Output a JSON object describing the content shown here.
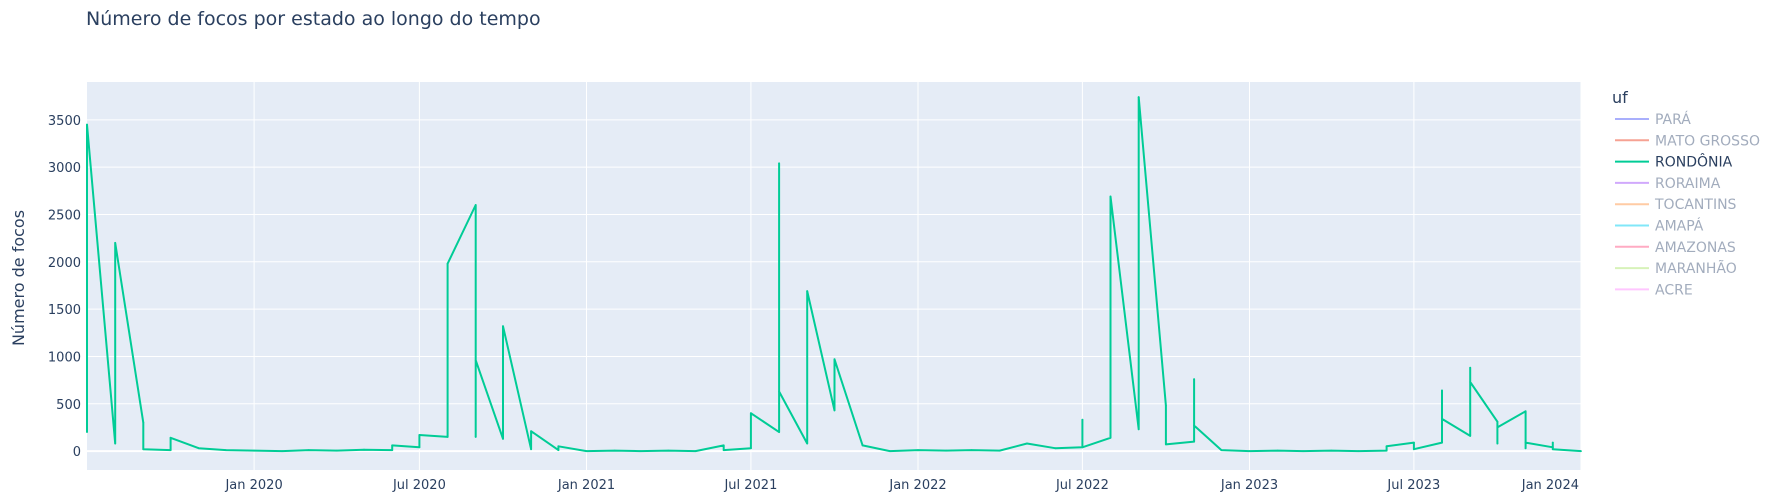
{
  "chart_data": {
    "type": "line",
    "title": "Número de focos por estado ao longo do tempo",
    "xlabel": "",
    "ylabel": "Número de focos",
    "xlim": [
      "2019-07-01",
      "2024-01-01"
    ],
    "ylim": [
      -200,
      3900
    ],
    "x_ticks": [
      {
        "date": "2020-01-01",
        "label": "Jan 2020"
      },
      {
        "date": "2020-07-01",
        "label": "Jul 2020"
      },
      {
        "date": "2021-01-01",
        "label": "Jan 2021"
      },
      {
        "date": "2021-07-01",
        "label": "Jul 2021"
      },
      {
        "date": "2022-01-01",
        "label": "Jan 2022"
      },
      {
        "date": "2022-07-01",
        "label": "Jul 2022"
      },
      {
        "date": "2023-01-01",
        "label": "Jan 2023"
      },
      {
        "date": "2023-07-01",
        "label": "Jul 2023"
      },
      {
        "date": "2024-01-01",
        "label": "Jan 2024"
      }
    ],
    "y_ticks": [
      0,
      500,
      1000,
      1500,
      2000,
      2500,
      3000,
      3500
    ],
    "grid": true,
    "background": "#e5ecf6",
    "legend": {
      "title": "uf",
      "placement": "right",
      "entries": [
        {
          "name": "PARÁ",
          "color": "#636efa",
          "visible": false
        },
        {
          "name": "MATO GROSSO",
          "color": "#ef553b",
          "visible": false
        },
        {
          "name": "RONDÔNIA",
          "color": "#00cc96",
          "visible": true
        },
        {
          "name": "RORAIMA",
          "color": "#ab63fa",
          "visible": false
        },
        {
          "name": "TOCANTINS",
          "color": "#ffa15a",
          "visible": false
        },
        {
          "name": "AMAPÁ",
          "color": "#19d3f3",
          "visible": false
        },
        {
          "name": "AMAZONAS",
          "color": "#ff6692",
          "visible": false
        },
        {
          "name": "MARANHÃO",
          "color": "#b6e880",
          "visible": false
        },
        {
          "name": "ACRE",
          "color": "#ff97ff",
          "visible": false
        }
      ]
    },
    "series": [
      {
        "name": "RONDÔNIA",
        "color": "#00cc96",
        "points": [
          [
            "2019-07-01",
            200
          ],
          [
            "2019-07-01",
            3450
          ],
          [
            "2019-08-01",
            80
          ],
          [
            "2019-08-01",
            2200
          ],
          [
            "2019-09-01",
            300
          ],
          [
            "2019-09-01",
            20
          ],
          [
            "2019-10-01",
            10
          ],
          [
            "2019-10-01",
            140
          ],
          [
            "2019-11-01",
            30
          ],
          [
            "2019-12-01",
            10
          ],
          [
            "2020-01-01",
            5
          ],
          [
            "2020-02-01",
            0
          ],
          [
            "2020-03-01",
            10
          ],
          [
            "2020-04-01",
            5
          ],
          [
            "2020-05-01",
            15
          ],
          [
            "2020-06-01",
            10
          ],
          [
            "2020-06-01",
            60
          ],
          [
            "2020-07-01",
            40
          ],
          [
            "2020-07-01",
            170
          ],
          [
            "2020-08-01",
            150
          ],
          [
            "2020-08-01",
            1980
          ],
          [
            "2020-09-01",
            2600
          ],
          [
            "2020-09-01",
            150
          ],
          [
            "2020-09-01",
            960
          ],
          [
            "2020-10-01",
            130
          ],
          [
            "2020-10-01",
            1320
          ],
          [
            "2020-11-01",
            20
          ],
          [
            "2020-11-01",
            210
          ],
          [
            "2020-12-01",
            10
          ],
          [
            "2020-12-01",
            50
          ],
          [
            "2021-01-01",
            0
          ],
          [
            "2021-02-01",
            5
          ],
          [
            "2021-03-01",
            0
          ],
          [
            "2021-04-01",
            5
          ],
          [
            "2021-05-01",
            0
          ],
          [
            "2021-06-01",
            60
          ],
          [
            "2021-06-01",
            10
          ],
          [
            "2021-07-01",
            30
          ],
          [
            "2021-07-01",
            400
          ],
          [
            "2021-08-01",
            200
          ],
          [
            "2021-08-01",
            3040
          ],
          [
            "2021-08-01",
            630
          ],
          [
            "2021-09-01",
            80
          ],
          [
            "2021-09-01",
            1690
          ],
          [
            "2021-10-01",
            430
          ],
          [
            "2021-10-01",
            970
          ],
          [
            "2021-11-01",
            60
          ],
          [
            "2021-12-01",
            0
          ],
          [
            "2022-01-01",
            10
          ],
          [
            "2022-02-01",
            5
          ],
          [
            "2022-03-01",
            10
          ],
          [
            "2022-04-01",
            5
          ],
          [
            "2022-05-01",
            80
          ],
          [
            "2022-06-01",
            30
          ],
          [
            "2022-07-01",
            40
          ],
          [
            "2022-07-01",
            330
          ],
          [
            "2022-07-01",
            40
          ],
          [
            "2022-08-01",
            140
          ],
          [
            "2022-08-01",
            2690
          ],
          [
            "2022-09-01",
            230
          ],
          [
            "2022-09-01",
            3740
          ],
          [
            "2022-10-01",
            480
          ],
          [
            "2022-10-01",
            70
          ],
          [
            "2022-11-01",
            100
          ],
          [
            "2022-11-01",
            760
          ],
          [
            "2022-11-01",
            270
          ],
          [
            "2022-12-01",
            10
          ],
          [
            "2023-01-01",
            0
          ],
          [
            "2023-02-01",
            5
          ],
          [
            "2023-03-01",
            0
          ],
          [
            "2023-04-01",
            5
          ],
          [
            "2023-05-01",
            0
          ],
          [
            "2023-06-01",
            5
          ],
          [
            "2023-06-01",
            50
          ],
          [
            "2023-07-01",
            90
          ],
          [
            "2023-07-01",
            20
          ],
          [
            "2023-08-01",
            90
          ],
          [
            "2023-08-01",
            640
          ],
          [
            "2023-08-01",
            340
          ],
          [
            "2023-09-01",
            160
          ],
          [
            "2023-09-01",
            880
          ],
          [
            "2023-09-01",
            730
          ],
          [
            "2023-10-01",
            310
          ],
          [
            "2023-10-01",
            80
          ],
          [
            "2023-10-01",
            250
          ],
          [
            "2023-11-01",
            420
          ],
          [
            "2023-11-01",
            30
          ],
          [
            "2023-11-01",
            90
          ],
          [
            "2023-12-01",
            40
          ],
          [
            "2023-12-01",
            90
          ],
          [
            "2023-12-01",
            20
          ],
          [
            "2024-01-01",
            0
          ]
        ]
      }
    ]
  }
}
